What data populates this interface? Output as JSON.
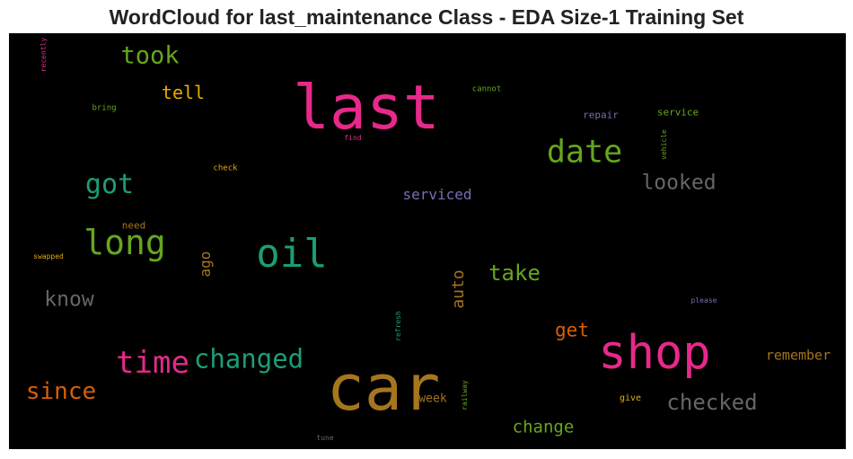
{
  "chart_data": {
    "type": "wordcloud",
    "title": "WordCloud for last_maintenance Class - EDA Size-1 Training Set",
    "words": [
      {
        "text": "last",
        "weight": 100,
        "color": "#e7298a"
      },
      {
        "text": "car",
        "weight": 100,
        "color": "#a6761d"
      },
      {
        "text": "shop",
        "weight": 80,
        "color": "#e7298a"
      },
      {
        "text": "oil",
        "weight": 60,
        "color": "#1b9e77"
      },
      {
        "text": "long",
        "weight": 55,
        "color": "#66a61e"
      },
      {
        "text": "date",
        "weight": 50,
        "color": "#66a61e"
      },
      {
        "text": "time",
        "weight": 45,
        "color": "#e7298a"
      },
      {
        "text": "changed",
        "weight": 42,
        "color": "#1b9e77"
      },
      {
        "text": "got",
        "weight": 40,
        "color": "#1b9e77"
      },
      {
        "text": "took",
        "weight": 38,
        "color": "#66a61e"
      },
      {
        "text": "since",
        "weight": 36,
        "color": "#d95f02"
      },
      {
        "text": "checked",
        "weight": 33,
        "color": "#666666"
      },
      {
        "text": "take",
        "weight": 30,
        "color": "#66a61e"
      },
      {
        "text": "looked",
        "weight": 30,
        "color": "#666666"
      },
      {
        "text": "know",
        "weight": 30,
        "color": "#666666"
      },
      {
        "text": "get",
        "weight": 28,
        "color": "#d95f02"
      },
      {
        "text": "tell",
        "weight": 25,
        "color": "#e6ab02"
      },
      {
        "text": "change",
        "weight": 24,
        "color": "#66a61e"
      },
      {
        "text": "auto",
        "weight": 22,
        "color": "#a6761d"
      },
      {
        "text": "serviced",
        "weight": 20,
        "color": "#7570b3"
      },
      {
        "text": "remember",
        "weight": 20,
        "color": "#a6761d"
      },
      {
        "text": "ago",
        "weight": 20,
        "color": "#a6761d"
      },
      {
        "text": "week",
        "weight": 14,
        "color": "#a6761d"
      },
      {
        "text": "repair",
        "weight": 12,
        "color": "#7570b3"
      },
      {
        "text": "service",
        "weight": 12,
        "color": "#66a61e"
      },
      {
        "text": "need",
        "weight": 11,
        "color": "#a6761d"
      },
      {
        "text": "give",
        "weight": 11,
        "color": "#e6ab02"
      },
      {
        "text": "cannot",
        "weight": 9,
        "color": "#66a61e"
      },
      {
        "text": "bring",
        "weight": 9,
        "color": "#66a61e"
      },
      {
        "text": "check",
        "weight": 9,
        "color": "#e6ab02"
      },
      {
        "text": "find",
        "weight": 9,
        "color": "#e7298a"
      },
      {
        "text": "swapped",
        "weight": 9,
        "color": "#e6ab02"
      },
      {
        "text": "please",
        "weight": 9,
        "color": "#7570b3"
      },
      {
        "text": "vehicle",
        "weight": 9,
        "color": "#66a61e"
      },
      {
        "text": "recently",
        "weight": 9,
        "color": "#e7298a"
      },
      {
        "text": "refresh",
        "weight": 9,
        "color": "#1b9e77"
      },
      {
        "text": "railway",
        "weight": 9,
        "color": "#66a61e"
      },
      {
        "text": "tune",
        "weight": 8,
        "color": "#666666"
      }
    ]
  }
}
